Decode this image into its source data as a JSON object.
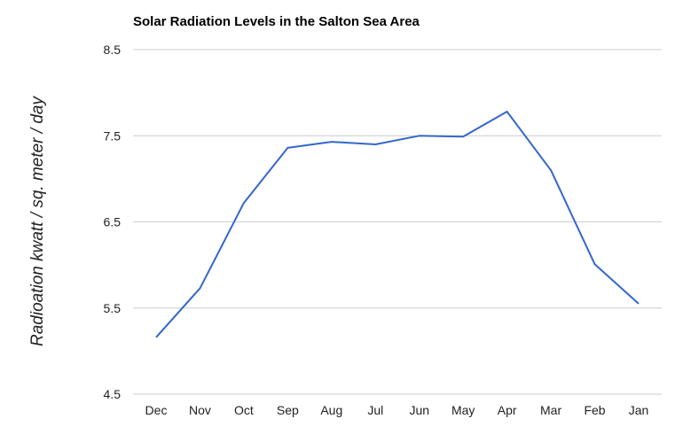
{
  "chart_data": {
    "type": "line",
    "title": "Solar Radiation Levels in the Salton Sea Area",
    "xlabel": "",
    "ylabel": "Radioation kwatt / sq. meter / day",
    "categories": [
      "Dec",
      "Nov",
      "Oct",
      "Sep",
      "Aug",
      "Jul",
      "Jun",
      "May",
      "Apr",
      "Mar",
      "Feb",
      "Jan"
    ],
    "series": [
      {
        "values": [
          5.16,
          5.73,
          6.72,
          7.36,
          7.43,
          7.4,
          7.5,
          7.49,
          7.78,
          7.1,
          6.01,
          5.55
        ],
        "color": "#3366cc"
      }
    ],
    "ylim": [
      4.5,
      8.5
    ],
    "yticks": [
      "4.5",
      "5.5",
      "6.5",
      "7.5",
      "8.5"
    ],
    "grid": true,
    "legend": "none"
  }
}
